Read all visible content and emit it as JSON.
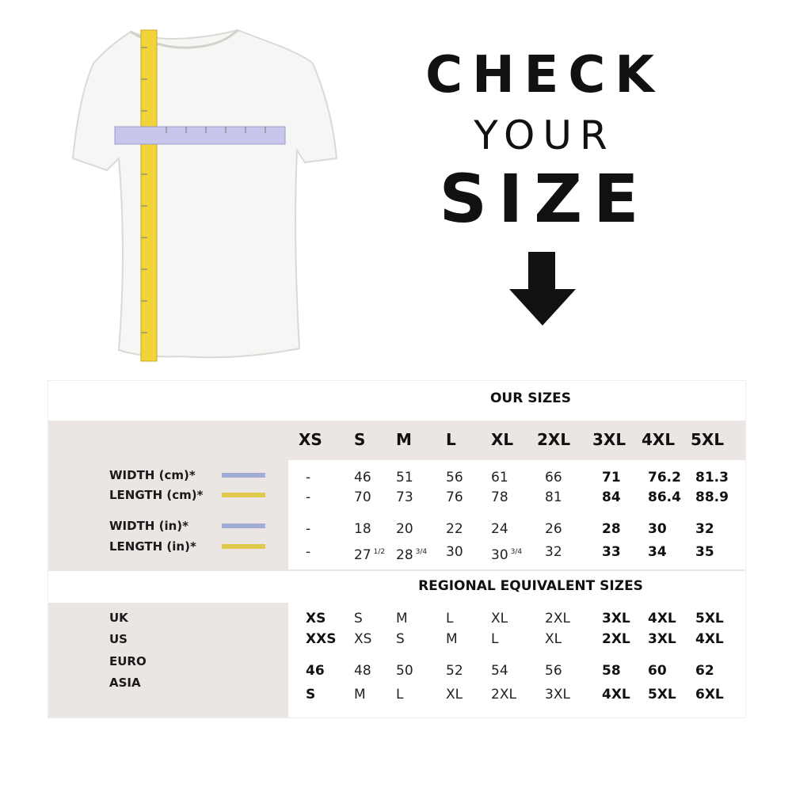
{
  "header": {
    "line1": "CHECK",
    "line2": "YOUR",
    "line3": "SIZE"
  },
  "table": {
    "our_sizes_title": "OUR SIZES",
    "sizes": [
      "XS",
      "S",
      "M",
      "L",
      "XL",
      "2XL",
      "3XL",
      "4XL",
      "5XL"
    ],
    "measurements": [
      {
        "label": "WIDTH (cm)*",
        "color": "#a3acd6",
        "values": [
          "-",
          "46",
          "51",
          "56",
          "61",
          "66",
          "71",
          "76.2",
          "81.3"
        ]
      },
      {
        "label": "LENGTH (cm)*",
        "color": "#e0c84a",
        "values": [
          "-",
          "70",
          "73",
          "76",
          "78",
          "81",
          "84",
          "86.4",
          "88.9"
        ]
      },
      {
        "label": "WIDTH (in)*",
        "color": "#a3acd6",
        "values": [
          "-",
          "18",
          "20",
          "22",
          "24",
          "26",
          "28",
          "30",
          "32"
        ]
      },
      {
        "label": "LENGTH (in)*",
        "color": "#e0c84a",
        "values": [
          "-",
          {
            "text": "27",
            "sup": "1/2"
          },
          {
            "text": "28",
            "sup": "3/4"
          },
          "30",
          {
            "text": "30",
            "sup": "3/4"
          },
          "32",
          "33",
          "34",
          "35"
        ]
      }
    ],
    "regional_title": "REGIONAL EQUIVALENT SIZES",
    "regional": [
      {
        "label": "UK",
        "values": [
          "XS",
          "S",
          "M",
          "L",
          "XL",
          "2XL",
          "3XL",
          "4XL",
          "5XL"
        ]
      },
      {
        "label": "US",
        "values": [
          "XXS",
          "XS",
          "S",
          "M",
          "L",
          "XL",
          "2XL",
          "3XL",
          "4XL"
        ]
      },
      {
        "label": "EURO",
        "values": [
          "46",
          "48",
          "50",
          "52",
          "54",
          "56",
          "58",
          "60",
          "62"
        ]
      },
      {
        "label": "ASIA",
        "values": [
          "S",
          "M",
          "L",
          "XL",
          "2XL",
          "3XL",
          "4XL",
          "5XL",
          "6XL"
        ]
      }
    ]
  }
}
